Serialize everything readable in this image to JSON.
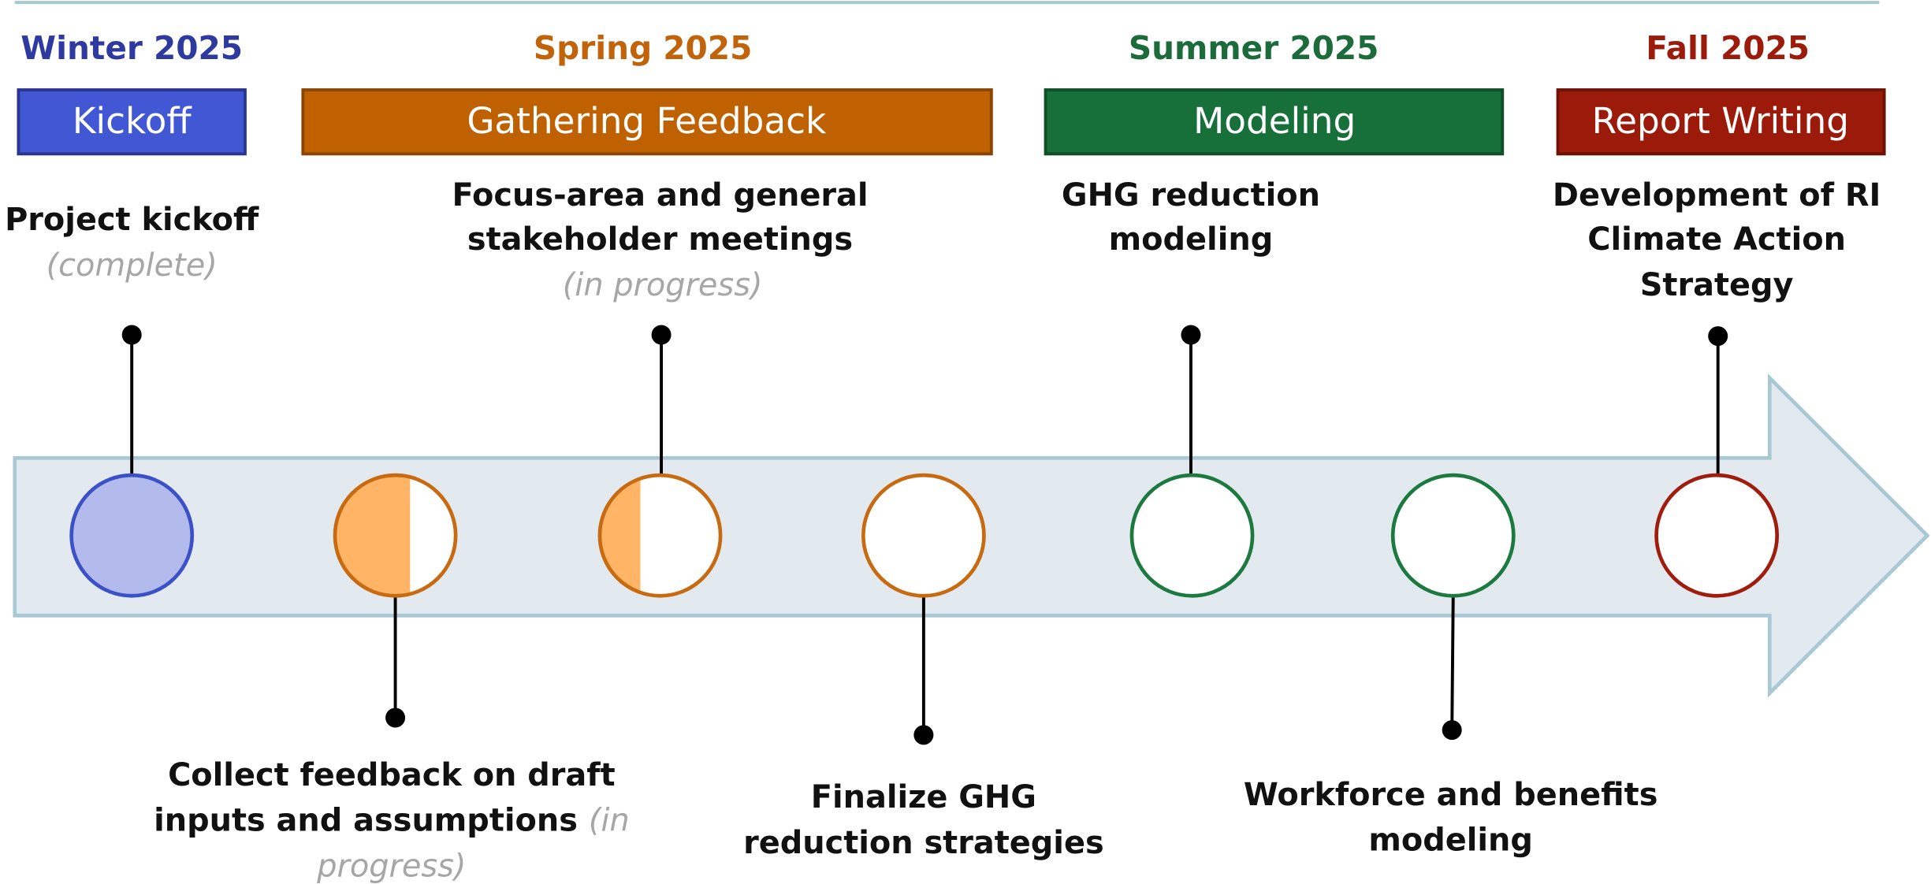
{
  "seasons": [
    {
      "label": "Winter 2025",
      "phase": "Kickoff"
    },
    {
      "label": "Spring 2025",
      "phase": "Gathering Feedback"
    },
    {
      "label": "Summer 2025",
      "phase": "Modeling"
    },
    {
      "label": "Fall 2025",
      "phase": "Report Writing"
    }
  ],
  "milestones": [
    {
      "title_lines": [
        "Project kickoff"
      ],
      "status_lines": [
        "(complete)"
      ]
    },
    {
      "title_lines": [
        "Collect feedback on draft",
        "inputs and assumptions"
      ],
      "status_lines": [
        "(in",
        "progress)"
      ]
    },
    {
      "title_lines": [
        "Focus-area and general",
        "stakeholder meetings"
      ],
      "status_lines": [
        "(in progress)"
      ]
    },
    {
      "title_lines": [
        "Finalize GHG",
        "reduction strategies"
      ]
    },
    {
      "title_lines": [
        "GHG reduction",
        "modeling"
      ]
    },
    {
      "title_lines": [
        "Workforce and benefits",
        "modeling"
      ]
    },
    {
      "title_lines": [
        "Development of RI",
        "Climate Action",
        "Strategy"
      ]
    }
  ]
}
